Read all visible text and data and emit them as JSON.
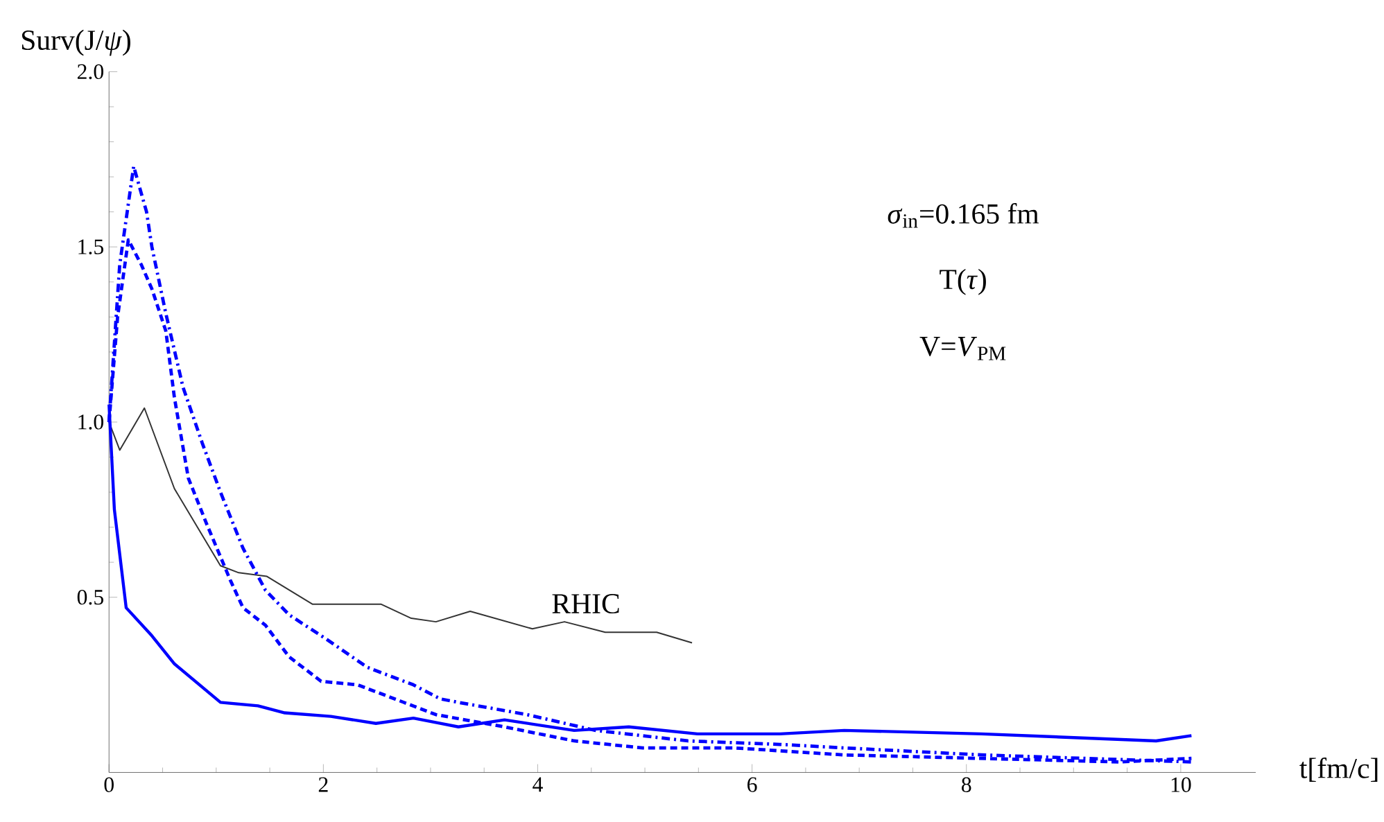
{
  "chart_data": {
    "type": "line",
    "xlabel": "t[fm/c]",
    "ylabel": "Surv(J/*ψ*)",
    "annotations": [
      "*σ*$_{in}$=0.165 fm",
      "T(*τ*)",
      "V=*V*$_{PM}$"
    ],
    "xlim": [
      0,
      10.7
    ],
    "ylim": [
      0,
      2.0
    ],
    "xticks": [
      0,
      2,
      4,
      6,
      8,
      10
    ],
    "yticks": [
      0.5,
      {
        "value": 1.0,
        "label": "1.0"
      },
      1.5,
      {
        "value": 2.0,
        "label": "2.0"
      }
    ],
    "grid": false,
    "legend": false,
    "marker": "none",
    "series": [
      {
        "name": "RHIC",
        "color": "#333333",
        "line_style": "solid",
        "x": [
          0,
          0.1,
          0.33,
          0.61,
          1.04,
          1.21,
          1.47,
          1.9,
          2.54,
          2.82,
          3.05,
          3.37,
          3.95,
          4.25,
          4.63,
          5.11,
          5.44
        ],
        "values": [
          1.0,
          0.92,
          1.04,
          0.81,
          0.59,
          0.57,
          0.56,
          0.48,
          0.48,
          0.44,
          0.43,
          0.46,
          0.41,
          0.43,
          0.4,
          0.4,
          0.37
        ]
      },
      {
        "color": "#0000ff",
        "line_style": "solid",
        "x": [
          0,
          0.05,
          0.16,
          0.4,
          0.61,
          1.04,
          1.39,
          1.64,
          2.07,
          2.49,
          2.84,
          3.09,
          3.26,
          3.69,
          4.34,
          4.85,
          5.49,
          6.26,
          6.86,
          8.14,
          9.77,
          10.1
        ],
        "values": [
          1.05,
          0.75,
          0.47,
          0.39,
          0.31,
          0.2,
          0.19,
          0.17,
          0.16,
          0.14,
          0.155,
          0.14,
          0.13,
          0.15,
          0.12,
          0.13,
          0.11,
          0.11,
          0.12,
          0.11,
          0.09,
          0.105
        ]
      },
      {
        "color": "#0000ff",
        "line_style": "dashed",
        "x": [
          0,
          0.08,
          0.18,
          0.3,
          0.4,
          0.53,
          0.61,
          0.74,
          0.91,
          1.13,
          1.25,
          1.46,
          1.68,
          1.98,
          2.32,
          2.75,
          3.05,
          3.69,
          4.34,
          4.98,
          5.83,
          6.86,
          8.14,
          9.42,
          10.1
        ],
        "values": [
          1.0,
          1.3,
          1.52,
          1.45,
          1.38,
          1.26,
          1.07,
          0.84,
          0.71,
          0.55,
          0.47,
          0.42,
          0.33,
          0.26,
          0.25,
          0.2,
          0.165,
          0.13,
          0.09,
          0.07,
          0.07,
          0.05,
          0.04,
          0.03,
          0.04
        ]
      },
      {
        "color": "#0000ff",
        "line_style": "dashdot",
        "x": [
          0,
          0.1,
          0.23,
          0.35,
          0.4,
          0.53,
          0.69,
          0.87,
          1.04,
          1.25,
          1.46,
          1.68,
          2.03,
          2.41,
          2.84,
          3.09,
          3.26,
          3.9,
          4.54,
          5.4,
          6.26,
          6.86,
          8.14,
          10.1
        ],
        "values": [
          1.0,
          1.45,
          1.73,
          1.6,
          1.5,
          1.31,
          1.1,
          0.94,
          0.8,
          0.64,
          0.52,
          0.45,
          0.38,
          0.3,
          0.25,
          0.21,
          0.2,
          0.165,
          0.12,
          0.09,
          0.08,
          0.07,
          0.05,
          0.03
        ]
      }
    ]
  }
}
